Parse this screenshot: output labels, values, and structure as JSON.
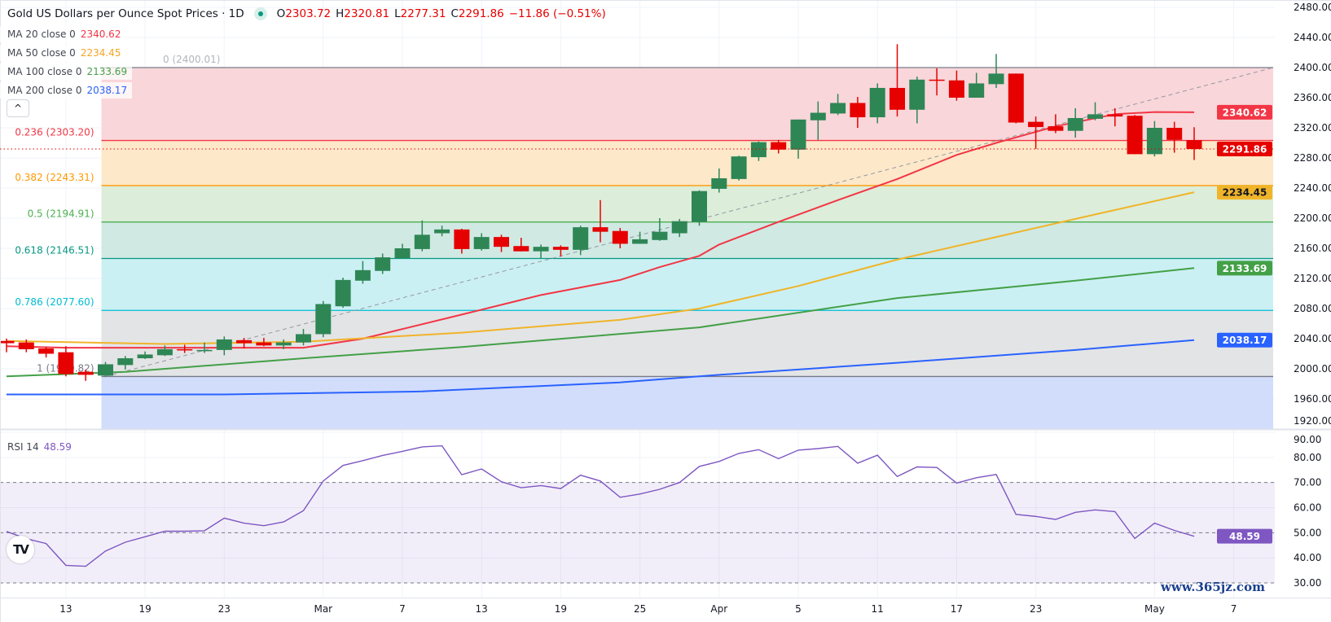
{
  "header": {
    "title": "Gold US Dollars per Ounce Spot Prices · 1D",
    "status_dot_color": "#089981",
    "ohlc": {
      "o_key": "O",
      "o": "2303.72",
      "h_key": "H",
      "h": "2320.81",
      "l_key": "L",
      "l": "2277.31",
      "c_key": "C",
      "c": "2291.86",
      "change": "−11.86 (−0.51%)"
    }
  },
  "indicators": [
    {
      "label": "MA 20 close 0",
      "value": "2340.62",
      "color": "#f23645"
    },
    {
      "label": "MA 50 close 0",
      "value": "2234.45",
      "color": "#fbc02d"
    },
    {
      "label": "MA 100 close 0",
      "value": "2133.69",
      "color": "#4caf50"
    },
    {
      "label": "MA 200 close 0",
      "value": "2038.17",
      "color": "#2962ff"
    }
  ],
  "collapse_button": {
    "icon": "chevron-up-icon",
    "glyph": "^"
  },
  "rsi": {
    "label": "RSI 14",
    "value": "48.59",
    "color": "#7e57c2"
  },
  "logo": {
    "text": "TV"
  },
  "watermark": "www.365jz.com",
  "chart_data": {
    "type": "candlestick",
    "up_color": "#2e8655",
    "down_color": "#e60000",
    "ylim": [
      1920,
      2480
    ],
    "yticks": [
      "2480.00",
      "2440.00",
      "2400.00",
      "2360.00",
      "2320.00",
      "2280.00",
      "2240.00",
      "2200.00",
      "2160.00",
      "2120.00",
      "2080.00",
      "2040.00",
      "2000.00",
      "1960.00",
      "1920.00"
    ],
    "time_labels": [
      {
        "label": "13",
        "date": "Feb 13"
      },
      {
        "label": "19",
        "date": "Feb 19"
      },
      {
        "label": "23",
        "date": "Feb 23"
      },
      {
        "label": "Mar",
        "date": "Mar 1"
      },
      {
        "label": "7",
        "date": "Mar 7"
      },
      {
        "label": "13",
        "date": "Mar 13"
      },
      {
        "label": "19",
        "date": "Mar 19"
      },
      {
        "label": "25",
        "date": "Mar 25"
      },
      {
        "label": "Apr",
        "date": "Apr 1"
      },
      {
        "label": "5",
        "date": "Apr 5"
      },
      {
        "label": "11",
        "date": "Apr 11"
      },
      {
        "label": "17",
        "date": "Apr 17"
      },
      {
        "label": "23",
        "date": "Apr 23"
      },
      {
        "label": "May",
        "date": "May 1"
      },
      {
        "label": "7",
        "date": "May 7"
      }
    ],
    "candles": [
      {
        "date": "Feb 8",
        "o": 2037,
        "h": 2040,
        "l": 2022,
        "c": 2034
      },
      {
        "date": "Feb 9",
        "o": 2035,
        "h": 2039,
        "l": 2022,
        "c": 2026
      },
      {
        "date": "Feb 12",
        "o": 2027,
        "h": 2029,
        "l": 2015,
        "c": 2020
      },
      {
        "date": "Feb 13",
        "o": 2022,
        "h": 2030,
        "l": 1990,
        "c": 1993
      },
      {
        "date": "Feb 14",
        "o": 1996,
        "h": 1999,
        "l": 1984,
        "c": 1992
      },
      {
        "date": "Feb 15",
        "o": 1991,
        "h": 2009,
        "l": 1989,
        "c": 2006
      },
      {
        "date": "Feb 16",
        "o": 2005,
        "h": 2017,
        "l": 1999,
        "c": 2014
      },
      {
        "date": "Feb 19",
        "o": 2014,
        "h": 2023,
        "l": 2013,
        "c": 2019
      },
      {
        "date": "Feb 20",
        "o": 2018,
        "h": 2031,
        "l": 2017,
        "c": 2026
      },
      {
        "date": "Feb 21",
        "o": 2026,
        "h": 2032,
        "l": 2021,
        "c": 2025
      },
      {
        "date": "Feb 22",
        "o": 2024,
        "h": 2035,
        "l": 2021,
        "c": 2025
      },
      {
        "date": "Feb 23",
        "o": 2025,
        "h": 2043,
        "l": 2018,
        "c": 2039
      },
      {
        "date": "Feb 26",
        "o": 2038,
        "h": 2041,
        "l": 2027,
        "c": 2034
      },
      {
        "date": "Feb 27",
        "o": 2035,
        "h": 2041,
        "l": 2030,
        "c": 2031
      },
      {
        "date": "Feb 28",
        "o": 2031,
        "h": 2039,
        "l": 2026,
        "c": 2035
      },
      {
        "date": "Feb 29",
        "o": 2035,
        "h": 2053,
        "l": 2031,
        "c": 2046
      },
      {
        "date": "Mar 1",
        "o": 2046,
        "h": 2090,
        "l": 2042,
        "c": 2086
      },
      {
        "date": "Mar 4",
        "o": 2083,
        "h": 2121,
        "l": 2081,
        "c": 2118
      },
      {
        "date": "Mar 5",
        "o": 2117,
        "h": 2143,
        "l": 2113,
        "c": 2131
      },
      {
        "date": "Mar 6",
        "o": 2130,
        "h": 2153,
        "l": 2126,
        "c": 2148
      },
      {
        "date": "Mar 7",
        "o": 2147,
        "h": 2166,
        "l": 2146,
        "c": 2160
      },
      {
        "date": "Mar 8",
        "o": 2159,
        "h": 2197,
        "l": 2156,
        "c": 2178
      },
      {
        "date": "Mar 11",
        "o": 2180,
        "h": 2190,
        "l": 2176,
        "c": 2185
      },
      {
        "date": "Mar 12",
        "o": 2185,
        "h": 2186,
        "l": 2153,
        "c": 2159
      },
      {
        "date": "Mar 13",
        "o": 2159,
        "h": 2180,
        "l": 2157,
        "c": 2175
      },
      {
        "date": "Mar 14",
        "o": 2175,
        "h": 2178,
        "l": 2155,
        "c": 2162
      },
      {
        "date": "Mar 15",
        "o": 2163,
        "h": 2174,
        "l": 2156,
        "c": 2156
      },
      {
        "date": "Mar 18",
        "o": 2156,
        "h": 2165,
        "l": 2147,
        "c": 2162
      },
      {
        "date": "Mar 19",
        "o": 2162,
        "h": 2164,
        "l": 2149,
        "c": 2158
      },
      {
        "date": "Mar 20",
        "o": 2158,
        "h": 2190,
        "l": 2151,
        "c": 2188
      },
      {
        "date": "Mar 21",
        "o": 2188,
        "h": 2224,
        "l": 2168,
        "c": 2182
      },
      {
        "date": "Mar 22",
        "o": 2183,
        "h": 2187,
        "l": 2160,
        "c": 2166
      },
      {
        "date": "Mar 25",
        "o": 2166,
        "h": 2182,
        "l": 2166,
        "c": 2172
      },
      {
        "date": "Mar 26",
        "o": 2171,
        "h": 2200,
        "l": 2170,
        "c": 2182
      },
      {
        "date": "Mar 27",
        "o": 2180,
        "h": 2199,
        "l": 2175,
        "c": 2196
      },
      {
        "date": "Mar 28",
        "o": 2195,
        "h": 2237,
        "l": 2190,
        "c": 2236
      },
      {
        "date": "Apr 1",
        "o": 2239,
        "h": 2266,
        "l": 2234,
        "c": 2253
      },
      {
        "date": "Apr 2",
        "o": 2252,
        "h": 2283,
        "l": 2250,
        "c": 2282
      },
      {
        "date": "Apr 3",
        "o": 2281,
        "h": 2302,
        "l": 2276,
        "c": 2301
      },
      {
        "date": "Apr 4",
        "o": 2301,
        "h": 2304,
        "l": 2286,
        "c": 2291
      },
      {
        "date": "Apr 5",
        "o": 2291,
        "h": 2331,
        "l": 2279,
        "c": 2331
      },
      {
        "date": "Apr 8",
        "o": 2330,
        "h": 2355,
        "l": 2304,
        "c": 2340
      },
      {
        "date": "Apr 9",
        "o": 2339,
        "h": 2365,
        "l": 2337,
        "c": 2353
      },
      {
        "date": "Apr 10",
        "o": 2353,
        "h": 2361,
        "l": 2320,
        "c": 2334
      },
      {
        "date": "Apr 11",
        "o": 2334,
        "h": 2379,
        "l": 2326,
        "c": 2373
      },
      {
        "date": "Apr 12",
        "o": 2373,
        "h": 2431,
        "l": 2335,
        "c": 2344
      },
      {
        "date": "Apr 15",
        "o": 2344,
        "h": 2388,
        "l": 2326,
        "c": 2384
      },
      {
        "date": "Apr 16",
        "o": 2384,
        "h": 2399,
        "l": 2363,
        "c": 2383
      },
      {
        "date": "Apr 17",
        "o": 2383,
        "h": 2396,
        "l": 2356,
        "c": 2360
      },
      {
        "date": "Apr 18",
        "o": 2360,
        "h": 2393,
        "l": 2360,
        "c": 2379
      },
      {
        "date": "Apr 19",
        "o": 2378,
        "h": 2418,
        "l": 2373,
        "c": 2392
      },
      {
        "date": "Apr 22",
        "o": 2392,
        "h": 2392,
        "l": 2326,
        "c": 2327
      },
      {
        "date": "Apr 23",
        "o": 2328,
        "h": 2335,
        "l": 2292,
        "c": 2321
      },
      {
        "date": "Apr 24",
        "o": 2322,
        "h": 2338,
        "l": 2313,
        "c": 2316
      },
      {
        "date": "Apr 25",
        "o": 2316,
        "h": 2346,
        "l": 2307,
        "c": 2333
      },
      {
        "date": "Apr 26",
        "o": 2332,
        "h": 2354,
        "l": 2330,
        "c": 2338
      },
      {
        "date": "Apr 29",
        "o": 2338,
        "h": 2346,
        "l": 2322,
        "c": 2335
      },
      {
        "date": "Apr 30",
        "o": 2336,
        "h": 2337,
        "l": 2285,
        "c": 2285
      },
      {
        "date": "May 1",
        "o": 2285,
        "h": 2329,
        "l": 2282,
        "c": 2320
      },
      {
        "date": "May 2",
        "o": 2320,
        "h": 2328,
        "l": 2287,
        "c": 2304
      },
      {
        "date": "May 3",
        "o": 2303.72,
        "h": 2320.81,
        "l": 2277.31,
        "c": 2291.86
      }
    ],
    "moving_averages": [
      {
        "name": "MA 20",
        "color": "#f23645",
        "last": "2340.62",
        "points": [
          {
            "date": "Feb 8",
            "v": 2030
          },
          {
            "date": "Feb 13",
            "v": 2028
          },
          {
            "date": "Feb 29",
            "v": 2028
          },
          {
            "date": "Mar 5",
            "v": 2040
          },
          {
            "date": "Mar 12",
            "v": 2072
          },
          {
            "date": "Mar 18",
            "v": 2098
          },
          {
            "date": "Mar 22",
            "v": 2118
          },
          {
            "date": "Mar 26",
            "v": 2135
          },
          {
            "date": "Mar 28",
            "v": 2150
          },
          {
            "date": "Apr 1",
            "v": 2165
          },
          {
            "date": "Apr 4",
            "v": 2195
          },
          {
            "date": "Apr 9",
            "v": 2224
          },
          {
            "date": "Apr 12",
            "v": 2252
          },
          {
            "date": "Apr 17",
            "v": 2284
          },
          {
            "date": "Apr 19",
            "v": 2300
          },
          {
            "date": "Apr 24",
            "v": 2322
          },
          {
            "date": "Apr 29",
            "v": 2338
          },
          {
            "date": "May 1",
            "v": 2341
          },
          {
            "date": "May 3",
            "v": 2340.62
          }
        ]
      },
      {
        "name": "MA 50",
        "color": "#f0b429",
        "last": "2234.45",
        "points": [
          {
            "date": "Feb 8",
            "v": 2037
          },
          {
            "date": "Feb 20",
            "v": 2033
          },
          {
            "date": "Feb 29",
            "v": 2036
          },
          {
            "date": "Mar 12",
            "v": 2048
          },
          {
            "date": "Mar 22",
            "v": 2065
          },
          {
            "date": "Mar 28",
            "v": 2080
          },
          {
            "date": "Apr 5",
            "v": 2110
          },
          {
            "date": "Apr 12",
            "v": 2145
          },
          {
            "date": "Apr 19",
            "v": 2175
          },
          {
            "date": "Apr 26",
            "v": 2205
          },
          {
            "date": "May 3",
            "v": 2234.45
          }
        ]
      },
      {
        "name": "MA 100",
        "color": "#43a047",
        "last": "2133.69",
        "points": [
          {
            "date": "Feb 8",
            "v": 1990
          },
          {
            "date": "Feb 16",
            "v": 1996
          },
          {
            "date": "Feb 29",
            "v": 2014
          },
          {
            "date": "Mar 12",
            "v": 2029
          },
          {
            "date": "Mar 28",
            "v": 2055
          },
          {
            "date": "Apr 12",
            "v": 2094
          },
          {
            "date": "Apr 25",
            "v": 2117
          },
          {
            "date": "May 3",
            "v": 2133.69
          }
        ]
      },
      {
        "name": "MA 200",
        "color": "#2962ff",
        "last": "2038.17",
        "points": [
          {
            "date": "Feb 8",
            "v": 1966
          },
          {
            "date": "Feb 23",
            "v": 1966
          },
          {
            "date": "Mar 8",
            "v": 1970
          },
          {
            "date": "Mar 22",
            "v": 1982
          },
          {
            "date": "Apr 1",
            "v": 1992
          },
          {
            "date": "Apr 12",
            "v": 2008
          },
          {
            "date": "Apr 25",
            "v": 2025
          },
          {
            "date": "May 3",
            "v": 2038.17
          }
        ]
      }
    ],
    "last_price": {
      "value": "2291.86",
      "color": "#e60000"
    },
    "fibonacci": {
      "anchor_low_date": "Feb 15",
      "levels": [
        {
          "ratio": "0",
          "price": 2400.01,
          "label": "0 (2400.01)",
          "line": "#787b86",
          "fill": "#f9d6da",
          "text": "#b2b5be"
        },
        {
          "ratio": "0.236",
          "price": 2303.2,
          "label": "0.236 (2303.20)",
          "line": "#f23645",
          "fill": "#fde8ca",
          "text": "#f23645"
        },
        {
          "ratio": "0.382",
          "price": 2243.31,
          "label": "0.382 (2243.31)",
          "line": "#ff9800",
          "fill": "#dcedda",
          "text": "#ff9800"
        },
        {
          "ratio": "0.5",
          "price": 2194.91,
          "label": "0.5 (2194.91)",
          "line": "#4caf50",
          "fill": "#d0e9e3",
          "text": "#4caf50"
        },
        {
          "ratio": "0.618",
          "price": 2146.51,
          "label": "0.618 (2146.51)",
          "line": "#089981",
          "fill": "#cbf0f3",
          "text": "#089981"
        },
        {
          "ratio": "0.786",
          "price": 2077.6,
          "label": "0.786 (2077.60)",
          "line": "#00bcd4",
          "fill": "#e3e4e6",
          "text": "#00bcd4"
        },
        {
          "ratio": "1",
          "price": 1989.82,
          "label": "1 (1989.82)",
          "line": "#787b86",
          "fill": "#d2ddfc",
          "text": "#787b86"
        }
      ]
    },
    "rsi": {
      "period": 14,
      "ylim": [
        25,
        92
      ],
      "yticks": [
        "90.00",
        "80.00",
        "70.00",
        "60.00",
        "50.00",
        "40.00",
        "30.00"
      ],
      "bands": [
        30,
        50,
        70
      ],
      "values": [
        50.5,
        47.6,
        45.7,
        37.0,
        36.6,
        42.7,
        46.2,
        48.4,
        50.6,
        50.6,
        50.8,
        55.8,
        53.8,
        52.8,
        54.3,
        58.8,
        70.6,
        76.8,
        78.7,
        80.8,
        82.4,
        84.2,
        84.6,
        73.1,
        75.4,
        70.3,
        67.9,
        68.8,
        67.6,
        72.9,
        70.6,
        64.1,
        65.4,
        67.3,
        70.0,
        76.4,
        78.4,
        81.6,
        83.1,
        79.5,
        82.9,
        83.5,
        84.4,
        77.7,
        80.9,
        72.4,
        76.2,
        76.0,
        69.8,
        71.9,
        73.2,
        57.3,
        56.5,
        55.3,
        58.1,
        59.1,
        58.4,
        47.7,
        53.8,
        50.9,
        48.59
      ]
    }
  }
}
